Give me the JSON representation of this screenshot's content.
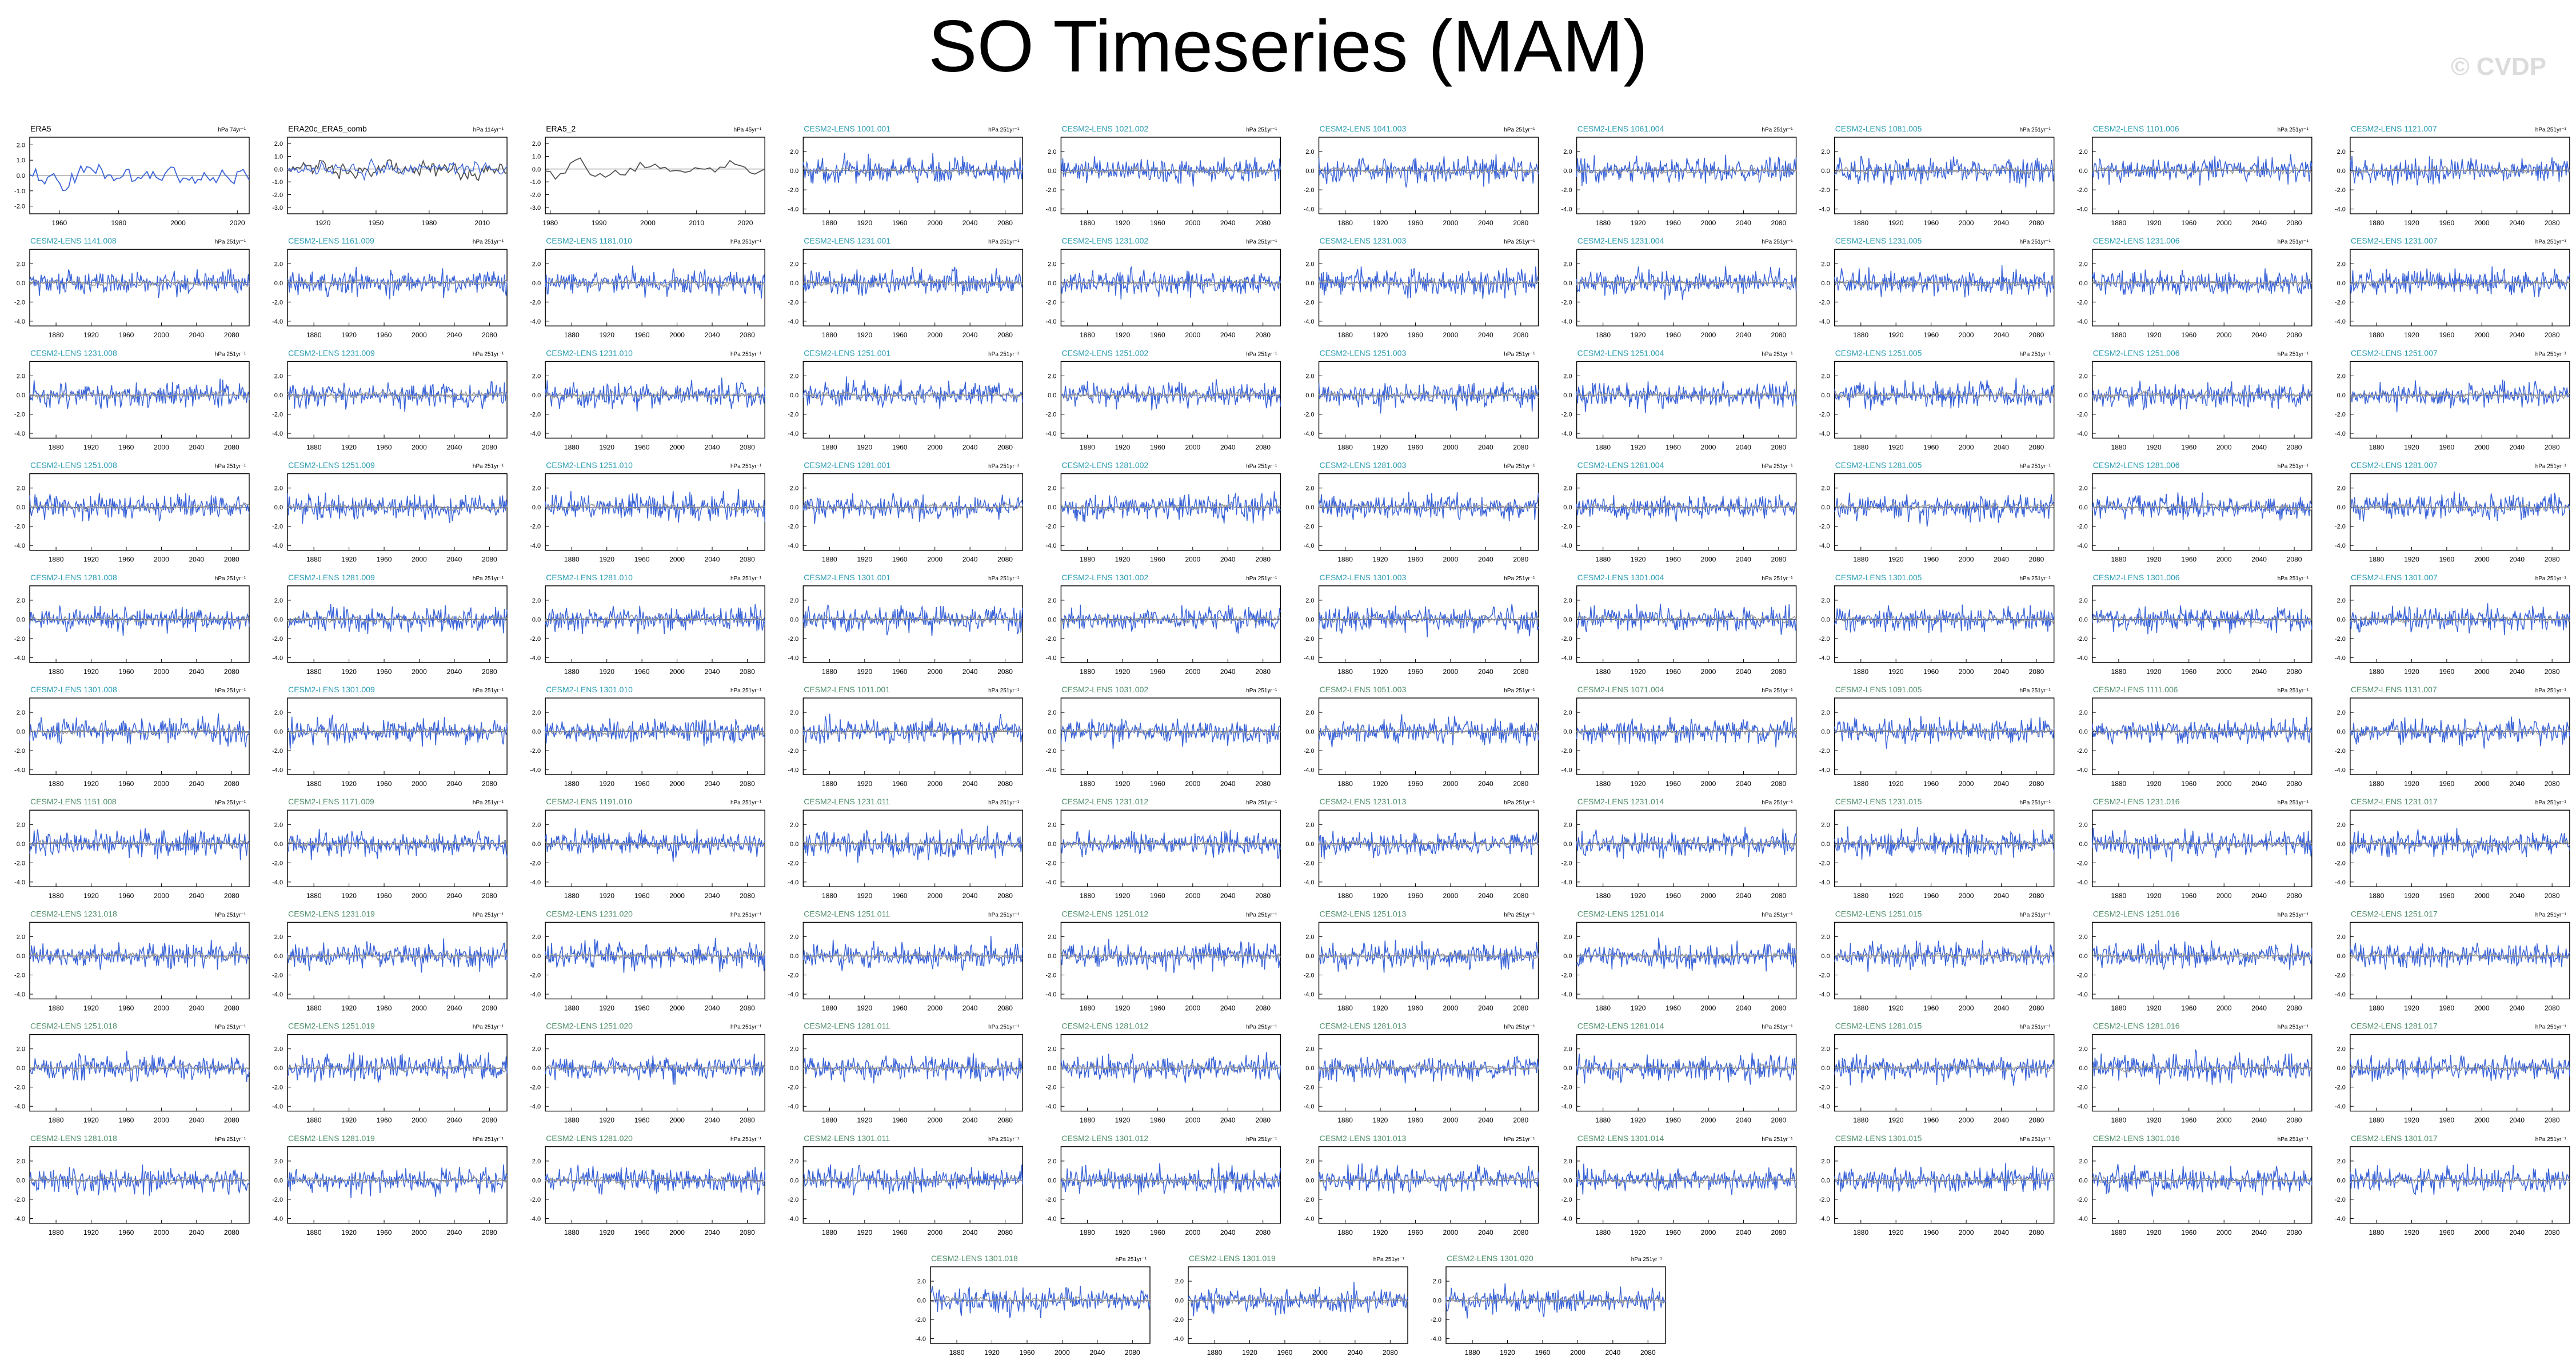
{
  "title": "SO Timeseries (MAM)",
  "watermark": "© CVDP",
  "colors": {
    "obs_title": "#000000",
    "hist_title": "#2a9db5",
    "ssp_title": "#4f8f6a",
    "ensemble_line": "#3a63d8",
    "ensemble_mean_line": "#9a9a9a",
    "obs_line": "#3a63d8",
    "obs_alt_line": "#555555",
    "axis": "#000000"
  },
  "chart_data": {
    "type": "line",
    "panel_grid": "10 columns x 10 rows + 3 panels centered in an 11th row",
    "obs_panels": [
      {
        "title": "ERA5",
        "units": "hPa 74yr⁻¹",
        "xticks": [
          "1960",
          "1980",
          "2000",
          "2020"
        ],
        "xlim": [
          1950,
          2024
        ],
        "yticks": [
          "2.0",
          "1.0",
          "0.0",
          "-1.0",
          "-2.0"
        ],
        "ylim": [
          -2.5,
          2.5
        ]
      },
      {
        "title": "ERA20c_ERA5_comb",
        "units": "hPa 114yr⁻¹",
        "xticks": [
          "1920",
          "1950",
          "1980",
          "2010"
        ],
        "xlim": [
          1900,
          2024
        ],
        "yticks": [
          "2.0",
          "1.0",
          "0.0",
          "-1.0",
          "-2.0",
          "-3.0"
        ],
        "ylim": [
          -3.5,
          2.5
        ]
      },
      {
        "title": "ERA5_2",
        "units": "hPa 45yr⁻¹",
        "xticks": [
          "1980",
          "1990",
          "2000",
          "2010",
          "2020"
        ],
        "xlim": [
          1979,
          2024
        ],
        "yticks": [
          "2.0",
          "1.0",
          "0.0",
          "-1.0",
          "-2.0",
          "-3.0"
        ],
        "ylim": [
          -3.5,
          2.5
        ]
      }
    ],
    "model_panel_axes": {
      "xticks": [
        "1880",
        "1920",
        "1960",
        "2000",
        "2040",
        "2080"
      ],
      "xlim": [
        1850,
        2100
      ],
      "yticks": [
        "2.0",
        "0.0",
        "-2.0",
        "-4.0"
      ],
      "ylim": [
        -4.5,
        3.5
      ],
      "units": "hPa 251yr⁻¹"
    },
    "model_panel_titles": [
      "CESM2-LENS 1001.001",
      "CESM2-LENS 1021.002",
      "CESM2-LENS 1041.003",
      "CESM2-LENS 1061.004",
      "CESM2-LENS 1081.005",
      "CESM2-LENS 1101.006",
      "CESM2-LENS 1121.007",
      "CESM2-LENS 1141.008",
      "CESM2-LENS 1161.009",
      "CESM2-LENS 1181.010",
      "CESM2-LENS 1231.001",
      "CESM2-LENS 1231.002",
      "CESM2-LENS 1231.003",
      "CESM2-LENS 1231.004",
      "CESM2-LENS 1231.005",
      "CESM2-LENS 1231.006",
      "CESM2-LENS 1231.007",
      "CESM2-LENS 1231.008",
      "CESM2-LENS 1231.009",
      "CESM2-LENS 1231.010",
      "CESM2-LENS 1251.001",
      "CESM2-LENS 1251.002",
      "CESM2-LENS 1251.003",
      "CESM2-LENS 1251.004",
      "CESM2-LENS 1251.005",
      "CESM2-LENS 1251.006",
      "CESM2-LENS 1251.007",
      "CESM2-LENS 1251.008",
      "CESM2-LENS 1251.009",
      "CESM2-LENS 1251.010",
      "CESM2-LENS 1281.001",
      "CESM2-LENS 1281.002",
      "CESM2-LENS 1281.003",
      "CESM2-LENS 1281.004",
      "CESM2-LENS 1281.005",
      "CESM2-LENS 1281.006",
      "CESM2-LENS 1281.007",
      "CESM2-LENS 1281.008",
      "CESM2-LENS 1281.009",
      "CESM2-LENS 1281.010",
      "CESM2-LENS 1301.001",
      "CESM2-LENS 1301.002",
      "CESM2-LENS 1301.003",
      "CESM2-LENS 1301.004",
      "CESM2-LENS 1301.005",
      "CESM2-LENS 1301.006",
      "CESM2-LENS 1301.007",
      "CESM2-LENS 1301.008",
      "CESM2-LENS 1301.009",
      "CESM2-LENS 1301.010",
      "CESM2-LENS 1011.001",
      "CESM2-LENS 1031.002",
      "CESM2-LENS 1051.003",
      "CESM2-LENS 1071.004",
      "CESM2-LENS 1091.005",
      "CESM2-LENS 1111.006",
      "CESM2-LENS 1131.007",
      "CESM2-LENS 1151.008",
      "CESM2-LENS 1171.009",
      "CESM2-LENS 1191.010",
      "CESM2-LENS 1231.011",
      "CESM2-LENS 1231.012",
      "CESM2-LENS 1231.013",
      "CESM2-LENS 1231.014",
      "CESM2-LENS 1231.015",
      "CESM2-LENS 1231.016",
      "CESM2-LENS 1231.017",
      "CESM2-LENS 1231.018",
      "CESM2-LENS 1231.019",
      "CESM2-LENS 1231.020",
      "CESM2-LENS 1251.011",
      "CESM2-LENS 1251.012",
      "CESM2-LENS 1251.013",
      "CESM2-LENS 1251.014",
      "CESM2-LENS 1251.015",
      "CESM2-LENS 1251.016",
      "CESM2-LENS 1251.017",
      "CESM2-LENS 1251.018",
      "CESM2-LENS 1251.019",
      "CESM2-LENS 1251.020",
      "CESM2-LENS 1281.011",
      "CESM2-LENS 1281.012",
      "CESM2-LENS 1281.013",
      "CESM2-LENS 1281.014",
      "CESM2-LENS 1281.015",
      "CESM2-LENS 1281.016",
      "CESM2-LENS 1281.017",
      "CESM2-LENS 1281.018",
      "CESM2-LENS 1281.019",
      "CESM2-LENS 1281.020",
      "CESM2-LENS 1301.011",
      "CESM2-LENS 1301.012",
      "CESM2-LENS 1301.013",
      "CESM2-LENS 1301.014",
      "CESM2-LENS 1301.015",
      "CESM2-LENS 1301.016",
      "CESM2-LENS 1301.017",
      "CESM2-LENS 1301.018",
      "CESM2-LENS 1301.019",
      "CESM2-LENS 1301.020"
    ],
    "hist_title_count": 50
  }
}
